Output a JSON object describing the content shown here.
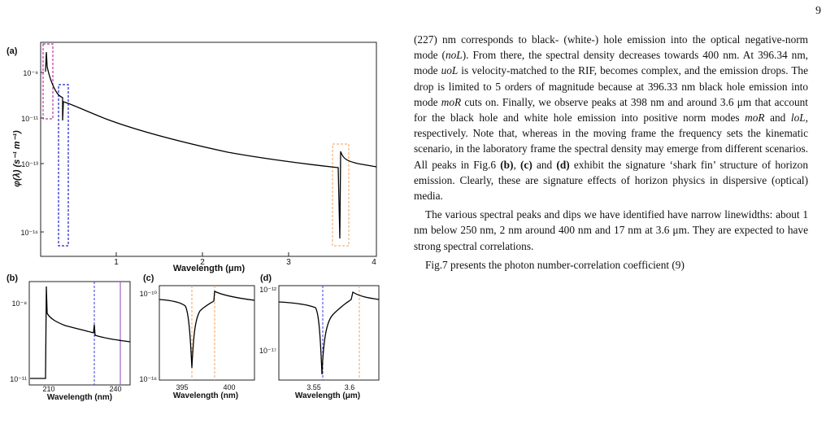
{
  "page_number": "9",
  "colors": {
    "curve": "#000000",
    "magenta_box": "#c0359c",
    "blue_box": "#1f1fd0",
    "orange_box": "#f0a060",
    "blue_dash": "#3a3adc",
    "violet_line": "#a060c0"
  },
  "figure": {
    "panel_a": {
      "label": "(a)",
      "ylabel": "φ(λ) (s⁻¹ m⁻¹)",
      "xlabel": "Wavelength (μm)",
      "yticks": [
        "10⁻⁹",
        "10⁻¹¹",
        "10⁻¹³",
        "10⁻¹⁶"
      ],
      "xticks": [
        "1",
        "2",
        "3",
        "4"
      ]
    },
    "panel_b": {
      "label": "(b)",
      "xlabel": "Wavelength (nm)",
      "yticks": [
        "10⁻⁸",
        "10⁻¹¹"
      ],
      "xticks": [
        "210",
        "240"
      ]
    },
    "panel_c": {
      "label": "(c)",
      "xlabel": "Wavelength (nm)",
      "yticks": [
        "10⁻¹⁰",
        "10⁻¹⁶"
      ],
      "xticks": [
        "395",
        "400"
      ]
    },
    "panel_d": {
      "label": "(d)",
      "xlabel": "Wavelength (μm)",
      "yticks": [
        "10⁻¹²",
        "10⁻¹⁷"
      ],
      "xticks": [
        "3.55",
        "3.6"
      ]
    }
  },
  "chart_data": [
    {
      "type": "line",
      "title": "(a)",
      "xlabel": "Wavelength (μm)",
      "ylabel": "φ(λ) (s⁻¹ m⁻¹)",
      "y_scale": "log",
      "xlim": [
        0.2,
        4.0
      ],
      "ylim": [
        1e-17,
        1e-08
      ],
      "series": [
        {
          "x": [
            0.21,
            0.22,
            0.25,
            0.3,
            0.35,
            0.396,
            0.4,
            0.5,
            0.8,
            1.0,
            1.5,
            2.0,
            2.5,
            3.0,
            3.4,
            3.55,
            3.58,
            3.6,
            3.65,
            3.8,
            4.0
          ],
          "y": [
            3e-09,
            1e-09,
            3e-10,
            1e-10,
            5e-11,
            3e-11,
            8e-12,
            2e-11,
            8e-12,
            5e-12,
            2.6e-12,
            1.4e-12,
            8e-13,
            4.8e-13,
            3.6e-13,
            2e-13,
            1e-16,
            1.2e-12,
            5e-13,
            3.6e-13,
            3e-13
          ]
        }
      ]
    },
    {
      "type": "line",
      "title": "(b)",
      "xlabel": "Wavelength (nm)",
      "y_scale": "log",
      "xlim": [
        203,
        242
      ],
      "ylim": [
        1e-11,
        5e-08
      ],
      "series": [
        {
          "x": [
            203,
            210,
            210.5,
            212,
            215,
            220,
            225,
            228,
            228.2,
            230,
            235,
            240
          ],
          "y": [
            1e-11,
            1e-11,
            3e-08,
            6e-09,
            3e-09,
            1.5e-09,
            9e-10,
            7e-10,
            1.3e-09,
            7e-10,
            6e-10,
            5e-10
          ]
        }
      ]
    },
    {
      "type": "line",
      "title": "(c)",
      "xlabel": "Wavelength (nm)",
      "y_scale": "log",
      "xlim": [
        393,
        402
      ],
      "ylim": [
        1e-16,
        2e-10
      ],
      "series": [
        {
          "x": [
            393,
            394,
            395,
            395.8,
            396.2,
            396.34,
            396.5,
            397,
            398,
            398.2,
            399,
            400,
            401,
            402
          ],
          "y": [
            6e-11,
            5e-11,
            4e-11,
            2e-11,
            1e-13,
            1e-16,
            1e-13,
            5e-12,
            2e-11,
            1e-10,
            6e-11,
            3e-11,
            1.5e-11,
            1.2e-11
          ]
        }
      ]
    },
    {
      "type": "line",
      "title": "(d)",
      "xlabel": "Wavelength (μm)",
      "y_scale": "log",
      "xlim": [
        3.5,
        3.65
      ],
      "ylim": [
        1e-18,
        1.5e-12
      ],
      "series": [
        {
          "x": [
            3.5,
            3.53,
            3.56,
            3.575,
            3.582,
            3.585,
            3.59,
            3.6,
            3.61,
            3.62,
            3.64
          ],
          "y": [
            6e-13,
            5e-13,
            3e-13,
            1e-13,
            1e-15,
            1e-18,
            1e-14,
            2e-13,
            1e-12,
            5e-13,
            3e-13
          ]
        }
      ]
    }
  ],
  "text": {
    "p1_a": "(227) nm corresponds to black- (white-) hole emission into the optical negative-norm mode (",
    "p1_noL": "noL",
    "p1_b": "). From there, the spectral density decreases towards 400 nm. At 396.34 nm, mode ",
    "p1_uoL": "uoL",
    "p1_c": " is velocity-matched to the RIF, becomes complex, and the emission drops. The drop is limited to 5 orders of magnitude because at 396.33 nm black hole emission into mode ",
    "p1_moR": "moR",
    "p1_d": " cuts on. Finally, we observe peaks at 398 nm and around 3.6 μm that account for the black hole and white hole emission into positive norm modes ",
    "p1_moR2": "moR",
    "p1_e": " and ",
    "p1_loL": "loL",
    "p1_f": ", respectively. Note that, whereas in the moving frame the frequency sets the kinematic scenario, in the laboratory frame the spectral density may emerge from different scenarios. All peaks in Fig.6 ",
    "p1_b_bold": "(b)",
    "p1_g": ", ",
    "p1_c_bold": "(c)",
    "p1_h": " and ",
    "p1_d_bold": "(d)",
    "p1_i": " exhibit the signature ‘shark fin’ structure of horizon emission. Clearly, these are signature effects of horizon physics in dispersive (optical) media.",
    "p2": "The various spectral peaks and dips we have identified have narrow linewidths: about 1 nm below 250 nm, 2 nm around 400 nm and 17 nm at 3.6 μm. They are expected to have strong spectral correlations.",
    "p3": "Fig.7 presents the photon number-correlation coefficient (9)"
  }
}
